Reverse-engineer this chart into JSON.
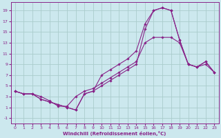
{
  "xlabel": "Windchill (Refroidissement éolien,°C)",
  "bg_color": "#cce8ee",
  "grid_color": "#aacccc",
  "line_color": "#882288",
  "xlim": [
    -0.5,
    23.5
  ],
  "ylim": [
    -2,
    20.5
  ],
  "xticks": [
    0,
    1,
    2,
    3,
    4,
    5,
    6,
    7,
    8,
    9,
    10,
    11,
    12,
    13,
    14,
    15,
    16,
    17,
    18,
    19,
    20,
    21,
    22,
    23
  ],
  "yticks": [
    -1,
    1,
    3,
    5,
    7,
    9,
    11,
    13,
    15,
    17,
    19
  ],
  "line1_x": [
    0,
    1,
    2,
    3,
    4,
    5,
    6,
    7,
    8,
    9,
    10,
    11,
    12,
    13,
    14,
    15,
    16,
    17,
    18,
    19,
    20,
    21,
    22,
    23
  ],
  "line1_y": [
    4,
    3.5,
    3.5,
    3,
    2.2,
    1.2,
    1.2,
    3,
    4,
    4.5,
    5.5,
    6.5,
    7.5,
    8.5,
    9.5,
    13,
    14,
    14,
    14,
    13,
    9,
    8.5,
    9,
    7.5
  ],
  "line2_x": [
    0,
    1,
    2,
    3,
    4,
    5,
    6,
    7,
    8,
    9,
    10,
    11,
    12,
    13,
    14,
    15,
    16,
    17,
    18,
    19,
    20,
    21,
    22,
    23
  ],
  "line2_y": [
    4,
    3.5,
    3.5,
    2.5,
    2,
    1.5,
    1,
    0.5,
    3.5,
    4,
    7,
    8,
    9,
    10,
    11.5,
    16.5,
    19,
    19.5,
    19,
    13.5,
    9,
    8.5,
    9.5,
    7.5
  ],
  "line3_x": [
    0,
    1,
    2,
    3,
    4,
    5,
    6,
    7,
    8,
    9,
    10,
    11,
    12,
    13,
    14,
    15,
    16,
    17,
    18,
    19,
    20,
    21,
    22,
    23
  ],
  "line3_y": [
    4,
    3.5,
    3.5,
    2.5,
    2,
    1.5,
    1,
    0.5,
    3.5,
    4,
    5,
    6,
    7,
    8,
    9,
    15.5,
    19,
    19.5,
    19,
    13.5,
    9,
    8.5,
    9.5,
    7.5
  ]
}
